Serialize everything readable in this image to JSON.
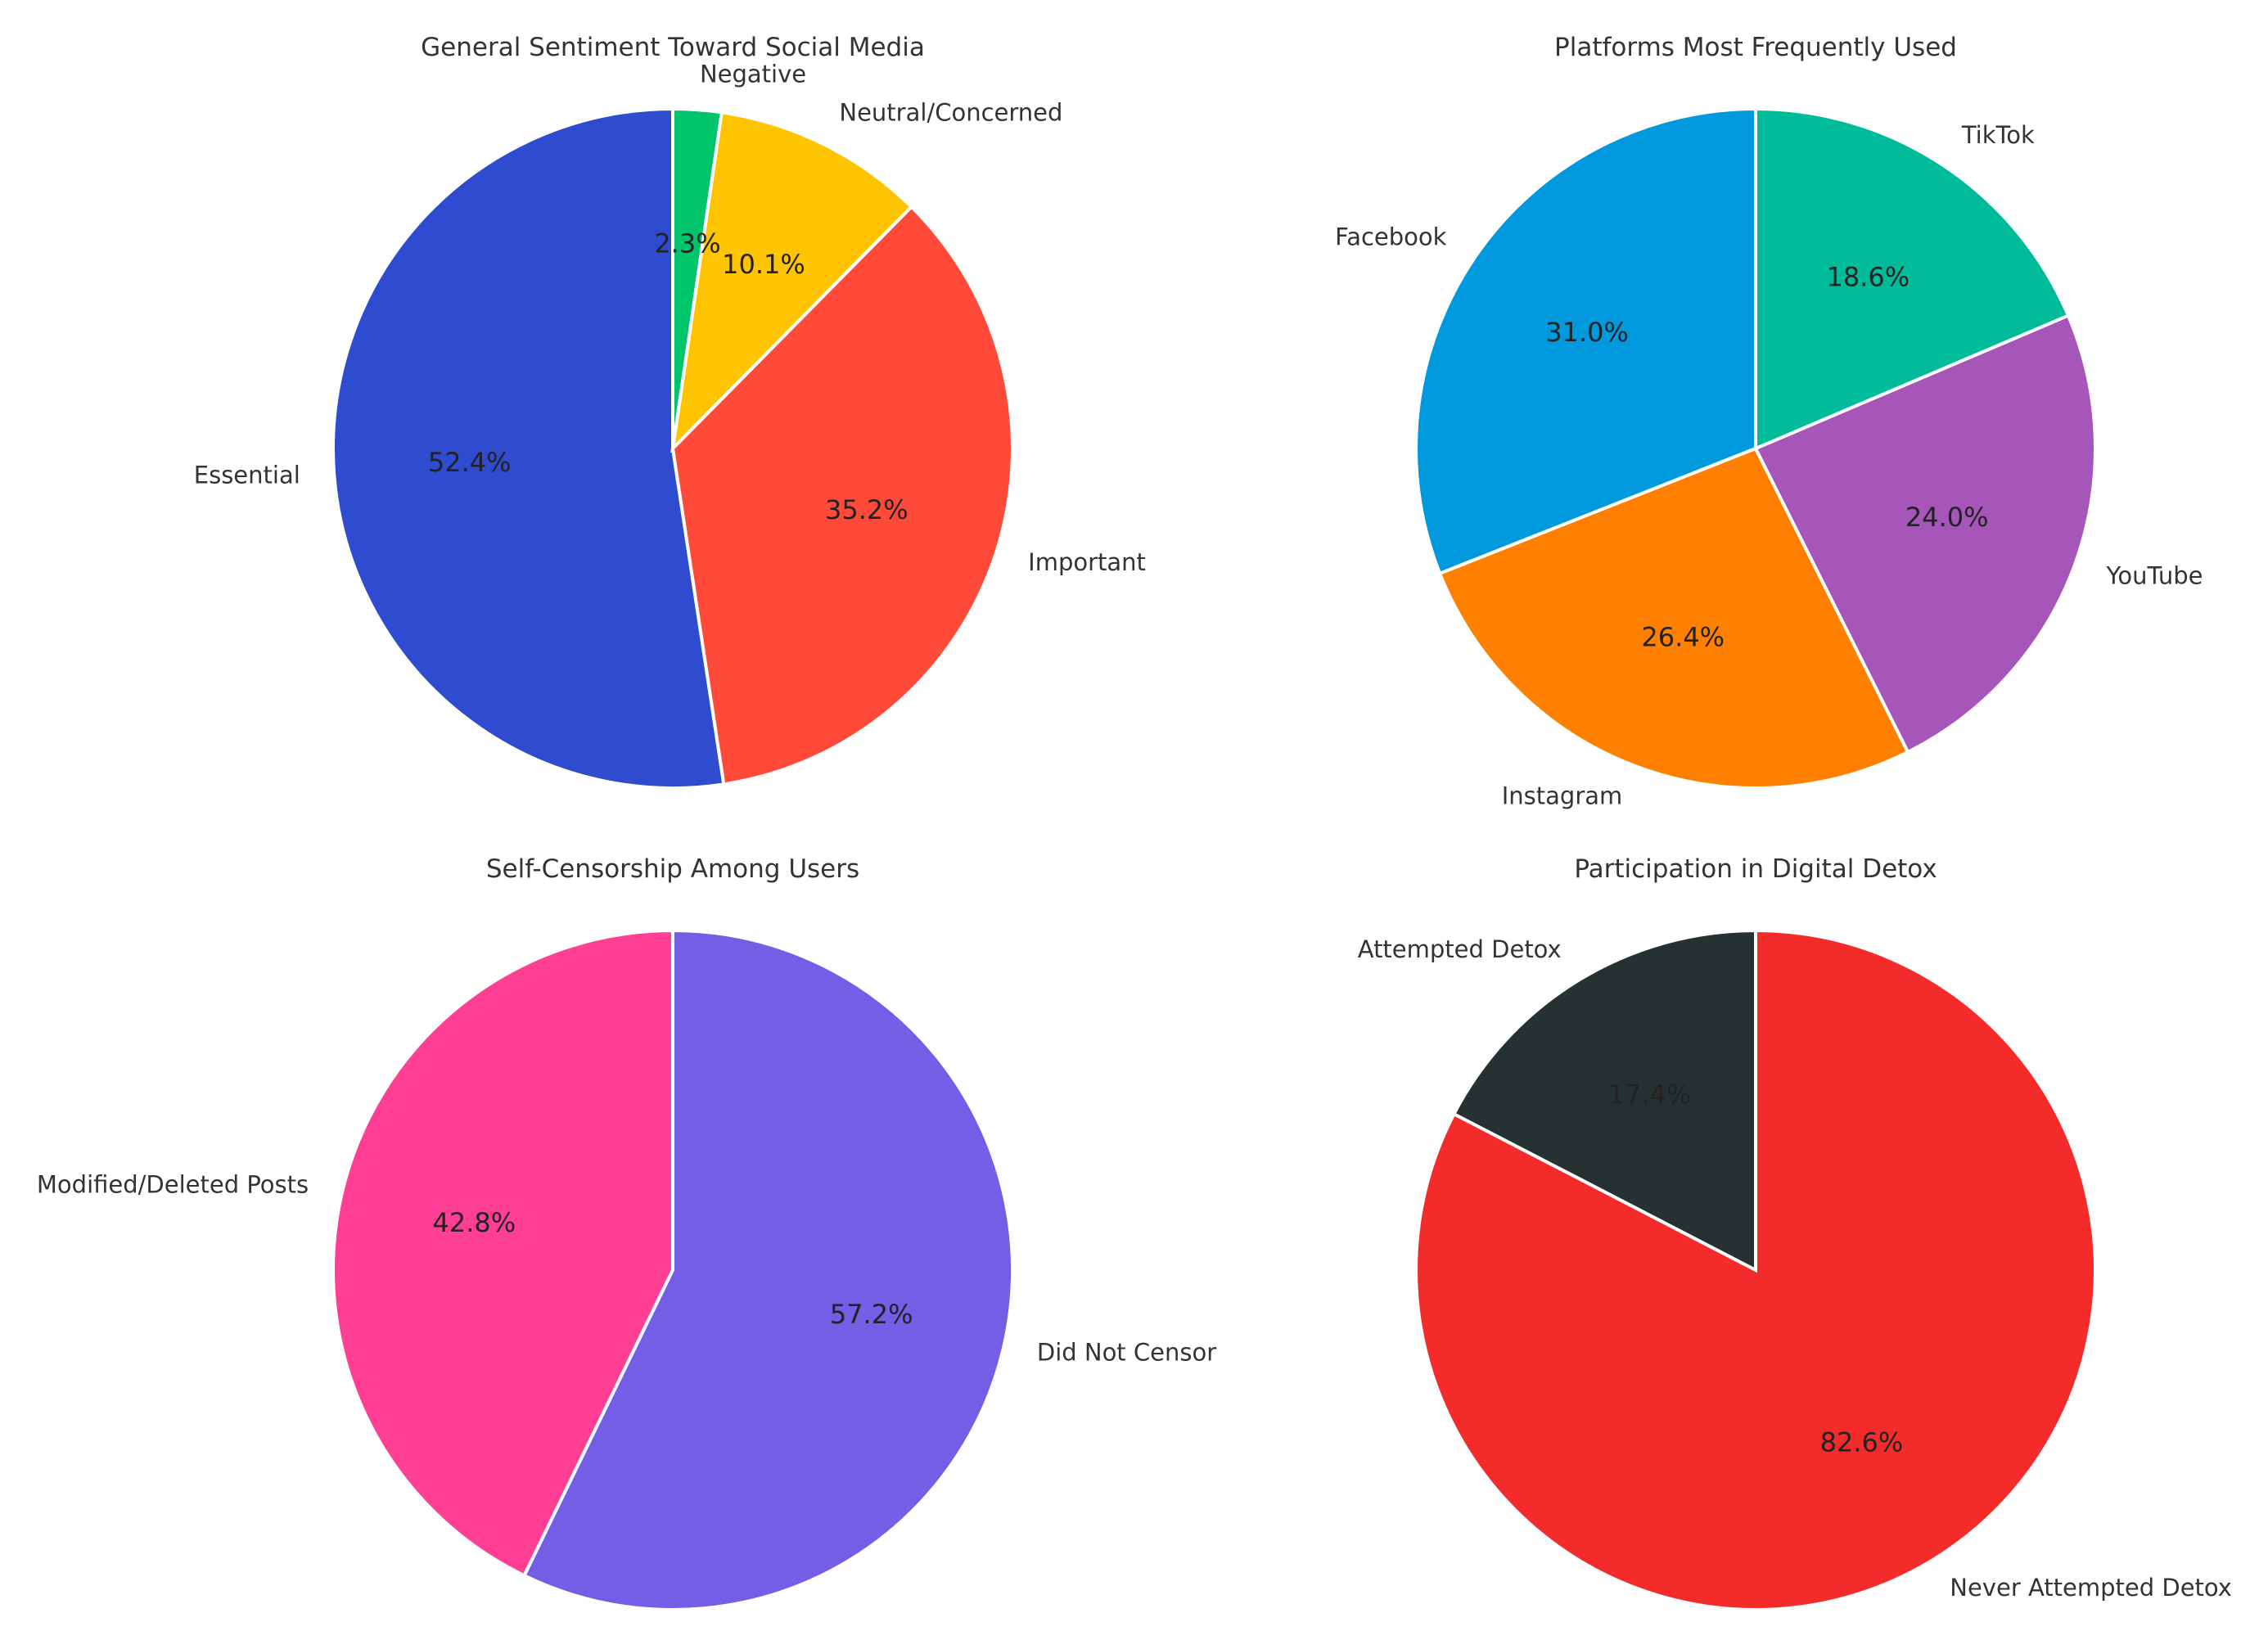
{
  "chart_data": [
    {
      "type": "pie",
      "title": "General Sentiment Toward Social Media",
      "start_angle": 90,
      "direction": "counterclockwise",
      "slices": [
        {
          "label": "Essential",
          "value": 52.4,
          "pct_label": "52.4%",
          "color": "#2f4bcf"
        },
        {
          "label": "Important",
          "value": 35.2,
          "pct_label": "35.2%",
          "color": "#ff4a3a"
        },
        {
          "label": "Neutral/Concerned",
          "value": 10.1,
          "pct_label": "10.1%",
          "color": "#ffc400"
        },
        {
          "label": "Negative",
          "value": 2.3,
          "pct_label": "2.3%",
          "color": "#00c46a"
        }
      ]
    },
    {
      "type": "pie",
      "title": "Platforms Most Frequently Used",
      "start_angle": 90,
      "direction": "counterclockwise",
      "slices": [
        {
          "label": "Facebook",
          "value": 31.0,
          "pct_label": "31.0%",
          "color": "#0099dd"
        },
        {
          "label": "Instagram",
          "value": 26.4,
          "pct_label": "26.4%",
          "color": "#ff8000"
        },
        {
          "label": "YouTube",
          "value": 24.0,
          "pct_label": "24.0%",
          "color": "#a656b8"
        },
        {
          "label": "TikTok",
          "value": 18.6,
          "pct_label": "18.6%",
          "color": "#00bb99"
        }
      ]
    },
    {
      "type": "pie",
      "title": "Self-Censorship Among Users",
      "start_angle": 90,
      "direction": "counterclockwise",
      "slices": [
        {
          "label": "Modified/Deleted Posts",
          "value": 42.8,
          "pct_label": "42.8%",
          "color": "#ff3f94"
        },
        {
          "label": "Did Not Censor",
          "value": 57.2,
          "pct_label": "57.2%",
          "color": "#745ee6"
        }
      ]
    },
    {
      "type": "pie",
      "title": "Participation in Digital Detox",
      "start_angle": 90,
      "direction": "counterclockwise",
      "slices": [
        {
          "label": "Attempted Detox",
          "value": 17.4,
          "pct_label": "17.4%",
          "color": "#263131"
        },
        {
          "label": "Never Attempted Detox",
          "value": 82.6,
          "pct_label": "82.6%",
          "color": "#f42b2b"
        }
      ]
    }
  ]
}
